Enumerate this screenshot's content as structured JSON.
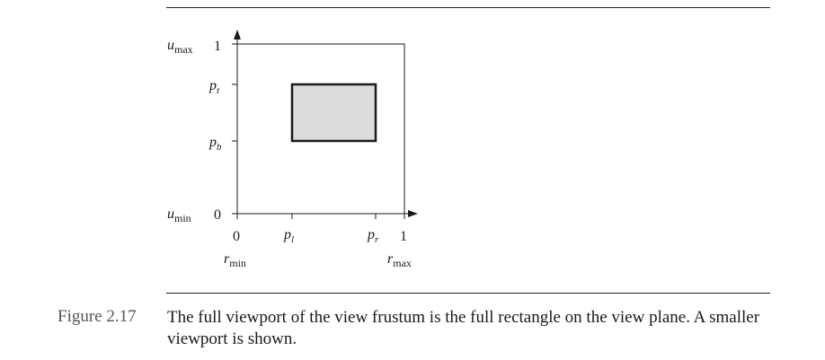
{
  "figure": {
    "y_axis": {
      "end_label": "u",
      "end_label_sub_top": "max",
      "end_label_sub_bottom": "min",
      "tick_top": "1",
      "tick_bottom": "0",
      "tick_pt": "p",
      "tick_pt_sub": "t",
      "tick_pb": "p",
      "tick_pb_sub": "b"
    },
    "x_axis": {
      "tick_left": "0",
      "tick_right": "1",
      "tick_pl": "p",
      "tick_pl_sub": "l",
      "tick_pr": "p",
      "tick_pr_sub": "r",
      "end_label": "r",
      "end_label_sub_left": "min",
      "end_label_sub_right": "max"
    },
    "colors": {
      "viewport_fill": "#dcdcdc",
      "stroke": "#1a1a1a"
    }
  },
  "caption": {
    "label": "Figure 2.17",
    "text": "The full viewport of the view frustum is the full rectangle on the view plane. A smaller viewport is shown."
  }
}
